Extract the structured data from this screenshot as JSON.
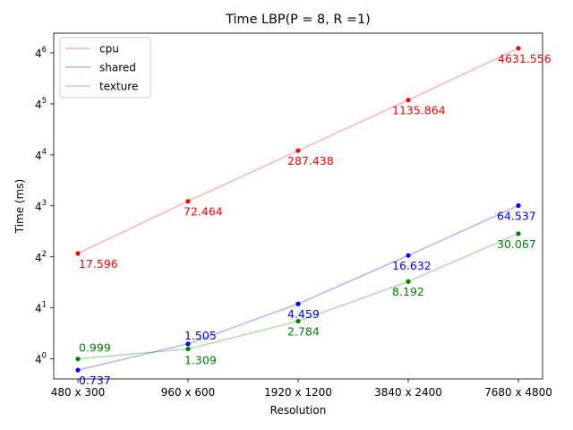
{
  "chart_data": {
    "type": "line",
    "title": "Time LBP(P = 8, R =1)",
    "xlabel": "Resolution",
    "ylabel": "Time (ms)",
    "categories": [
      "480 x 300",
      "960 x 600",
      "1920 x 1200",
      "3840 x 2400",
      "7680 x 4800"
    ],
    "y_scale": "log4",
    "y_ticks": [
      {
        "base": "4",
        "exp": "0",
        "value": 1
      },
      {
        "base": "4",
        "exp": "1",
        "value": 4
      },
      {
        "base": "4",
        "exp": "2",
        "value": 16
      },
      {
        "base": "4",
        "exp": "3",
        "value": 64
      },
      {
        "base": "4",
        "exp": "4",
        "value": 256
      },
      {
        "base": "4",
        "exp": "5",
        "value": 1024
      },
      {
        "base": "4",
        "exp": "6",
        "value": 4096
      }
    ],
    "ylim": [
      0.58,
      7000
    ],
    "legend_position": "top-left",
    "series": [
      {
        "name": "cpu",
        "color": "#ff0000",
        "values": [
          17.596,
          72.464,
          287.438,
          1135.864,
          4631.556
        ],
        "labels": [
          "17.596",
          "72.464",
          "287.438",
          "1135.864",
          "4631.556"
        ]
      },
      {
        "name": "shared",
        "color": "#0000ff",
        "values": [
          0.737,
          1.505,
          4.459,
          16.632,
          64.537
        ],
        "labels": [
          "0.737",
          "1.505",
          "4.459",
          "16.632",
          "64.537"
        ]
      },
      {
        "name": "texture",
        "color": "#008000",
        "values": [
          0.999,
          1.309,
          2.784,
          8.192,
          30.067
        ],
        "labels": [
          "0.999",
          "1.309",
          "2.784",
          "8.192",
          "30.067"
        ]
      }
    ]
  }
}
